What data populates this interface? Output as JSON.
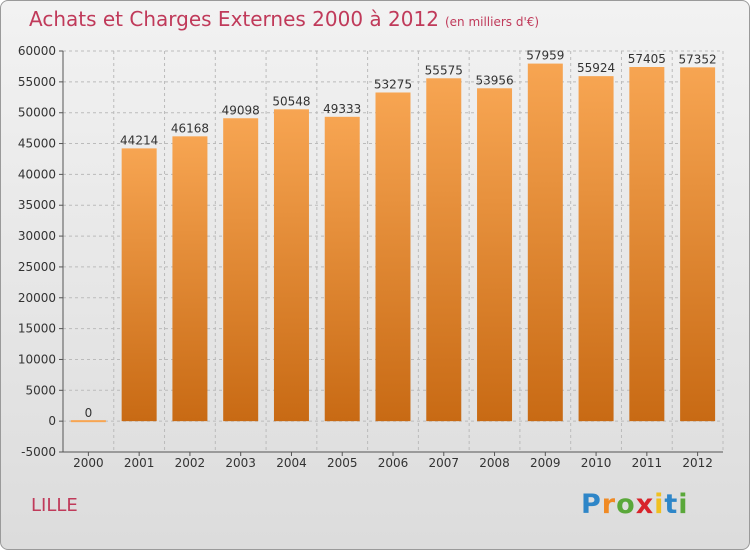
{
  "title": "Achats et Charges Externes 2000 à 2012",
  "subtitle": "(en milliers d'€)",
  "city": "LILLE",
  "logo": [
    "P",
    "r",
    "o",
    "x",
    "i",
    "t",
    "i"
  ],
  "colors": {
    "bar_top": "#f7a552",
    "bar_bottom": "#c86a14",
    "title": "#c03a5a",
    "grid": "#bbbbbb"
  },
  "chart_data": {
    "type": "bar",
    "title": "Achats et Charges Externes 2000 à 2012",
    "subtitle": "(en milliers d'€)",
    "xlabel": "",
    "ylabel": "",
    "categories": [
      "2000",
      "2001",
      "2002",
      "2003",
      "2004",
      "2005",
      "2006",
      "2007",
      "2008",
      "2009",
      "2010",
      "2011",
      "2012"
    ],
    "values": [
      0,
      44214,
      46168,
      49098,
      50548,
      49333,
      53275,
      55575,
      53956,
      57959,
      55924,
      57405,
      57352
    ],
    "ylim": [
      -5000,
      60000
    ],
    "yticks": [
      -5000,
      0,
      5000,
      10000,
      15000,
      20000,
      25000,
      30000,
      35000,
      40000,
      45000,
      50000,
      55000,
      60000
    ],
    "grid": true,
    "legend": "none"
  }
}
